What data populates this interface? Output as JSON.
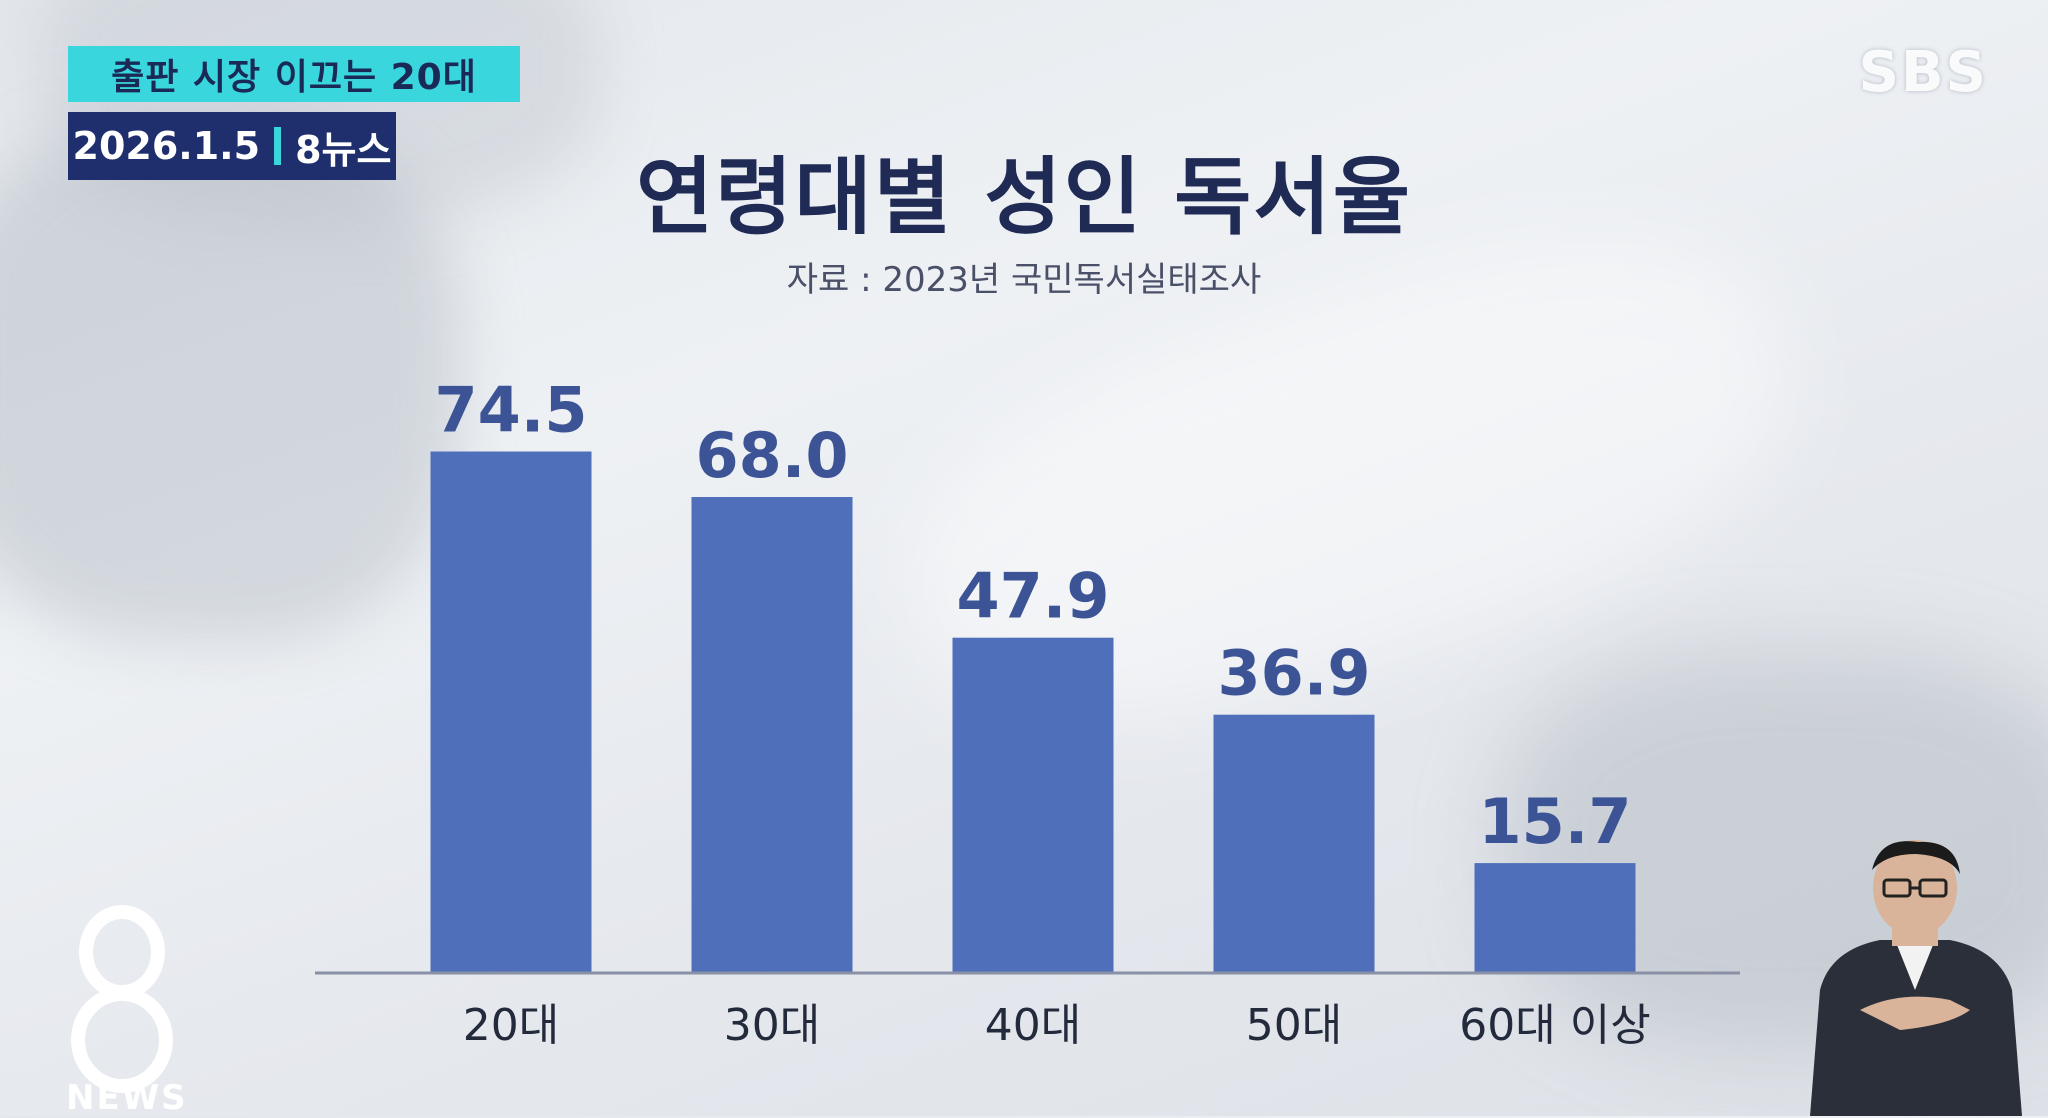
{
  "overlay": {
    "topic": "출판 시장 이끄는 20대",
    "date": "2026.1.5",
    "program": "8뉴스",
    "channel_logo": "SBS",
    "corner_logo_text": "NEWS"
  },
  "icons": {
    "corner_logo": "8-news-logo-icon",
    "interpreter": "sign-language-interpreter-figure"
  },
  "colors": {
    "bar": "#4f6fbb",
    "value_label": "#3c5496",
    "title": "#1f2a55",
    "topic_bg": "#3ad6de",
    "date_bg": "#1f2f6d"
  },
  "chart_data": {
    "type": "bar",
    "title": "연령대별 성인 독서율",
    "subtitle": "자료 : 2023년 국민독서실태조사",
    "categories": [
      "20대",
      "30대",
      "40대",
      "50대",
      "60대 이상"
    ],
    "values": [
      74.5,
      68.0,
      47.9,
      36.9,
      15.7
    ],
    "value_labels": [
      "74.5",
      "68.0",
      "47.9",
      "36.9",
      "15.7"
    ],
    "ylim": [
      0,
      80
    ],
    "grid": false,
    "legend": "none"
  }
}
